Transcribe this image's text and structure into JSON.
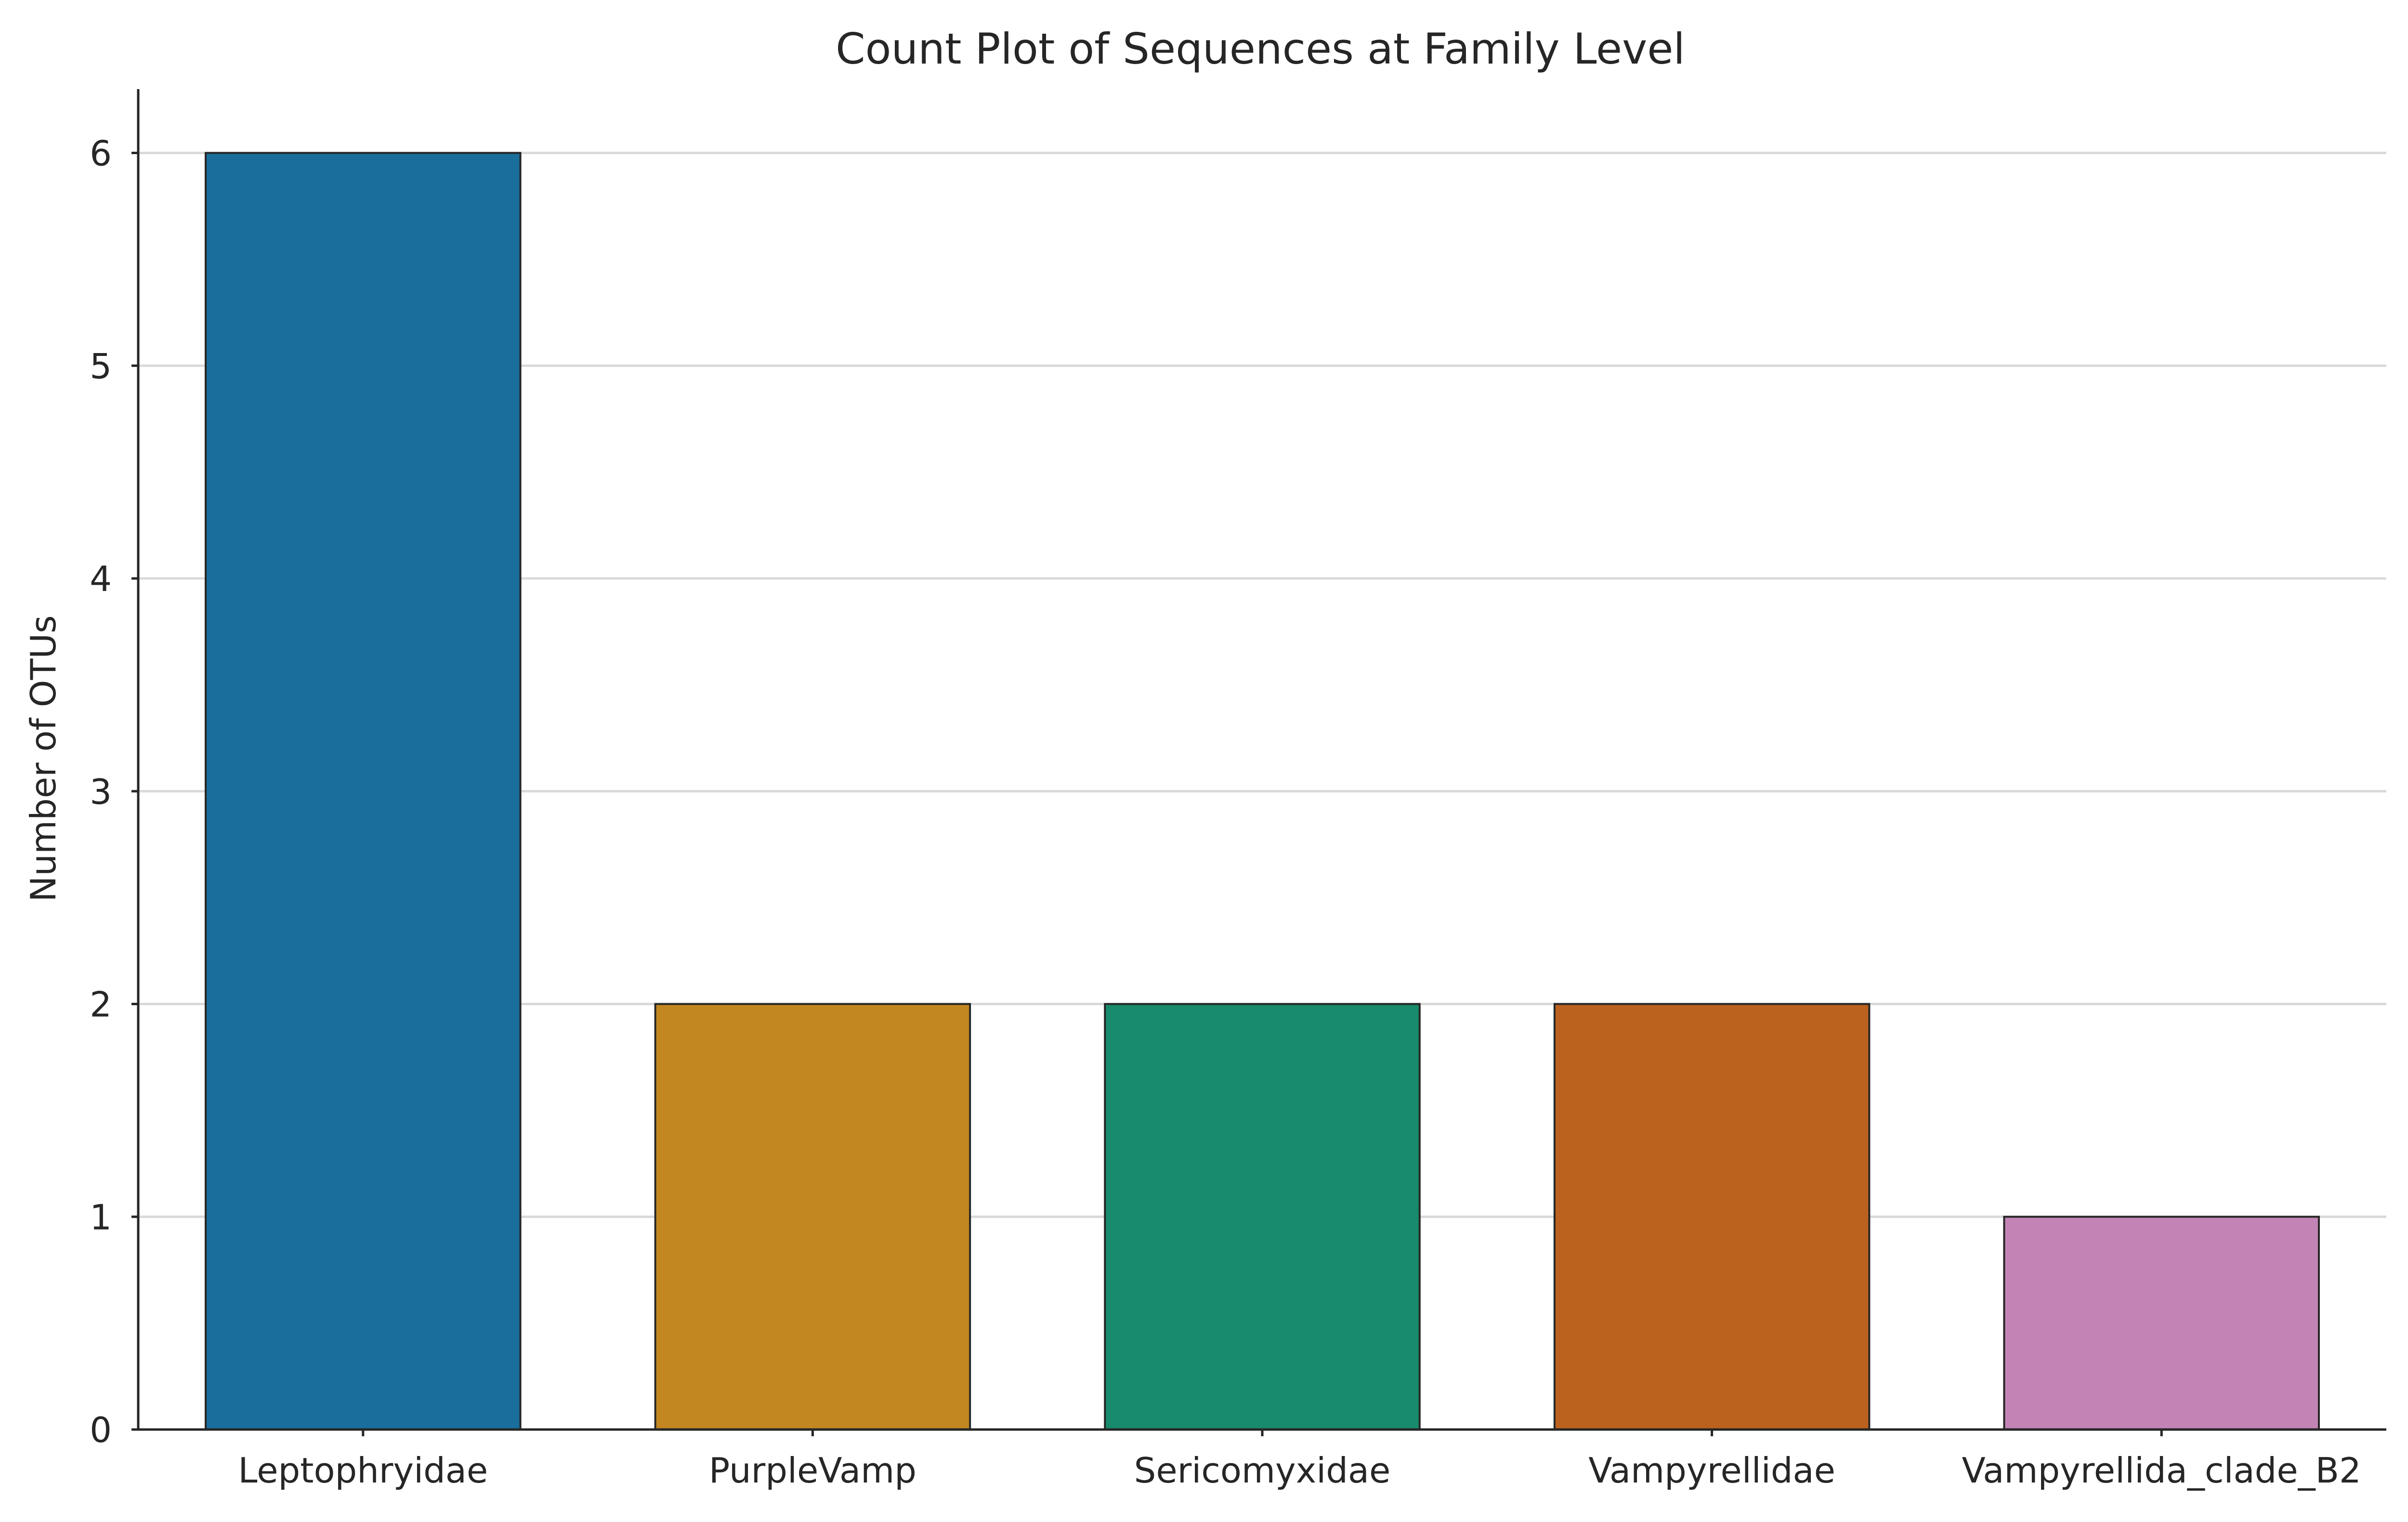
{
  "chart_data": {
    "type": "bar",
    "title": "Count Plot of Sequences at Family Level",
    "xlabel": "",
    "ylabel": "Number of OTUs",
    "categories": [
      "Leptophryidae",
      "PurpleVamp",
      "Sericomyxidae",
      "Vampyrellidae",
      "Vampyrellida_clade_B2"
    ],
    "values": [
      6,
      2,
      2,
      2,
      1
    ],
    "colors": [
      "#1a6e9b",
      "#c28721",
      "#178b6b",
      "#bb621e",
      "#c384b5"
    ],
    "ylim": [
      0,
      6.3
    ],
    "yticks": [
      0,
      1,
      2,
      3,
      4,
      5,
      6
    ],
    "grid": "horizontal",
    "legend": "none"
  }
}
